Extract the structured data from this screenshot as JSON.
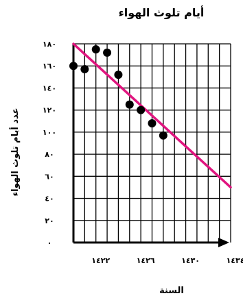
{
  "chart_data": {
    "type": "scatter",
    "title": "أيام تلوث الهواء",
    "xlabel": "السنة",
    "ylabel": "عدد أيام تلوث الهواء",
    "xlim": [
      1420,
      1434
    ],
    "ylim": [
      0,
      180
    ],
    "grid": true,
    "x_ticks": [
      1422,
      1426,
      1430,
      1434
    ],
    "x_tick_labels": [
      "١٤٢٢",
      "١٤٢٦",
      "١٤٣٠",
      "١٤٣٤"
    ],
    "y_ticks": [
      0,
      20,
      40,
      60,
      80,
      100,
      120,
      140,
      160,
      180
    ],
    "y_tick_labels": [
      "٠",
      "٢٠",
      "٤٠",
      "٦٠",
      "٨٠",
      "١٠٠",
      "١٢٠",
      "١٤٠",
      "١٦٠",
      "١٨٠"
    ],
    "series": [
      {
        "points": [
          {
            "x": 1420,
            "y": 160
          },
          {
            "x": 1421,
            "y": 157
          },
          {
            "x": 1422,
            "y": 175
          },
          {
            "x": 1423,
            "y": 172
          },
          {
            "x": 1424,
            "y": 152
          },
          {
            "x": 1425,
            "y": 125
          },
          {
            "x": 1426,
            "y": 120
          },
          {
            "x": 1427,
            "y": 108
          },
          {
            "x": 1428,
            "y": 97
          }
        ],
        "color": "#000000"
      }
    ],
    "trend_line": {
      "x": [
        1420,
        1434
      ],
      "y": [
        180,
        50
      ],
      "color": "#e0157f"
    }
  }
}
